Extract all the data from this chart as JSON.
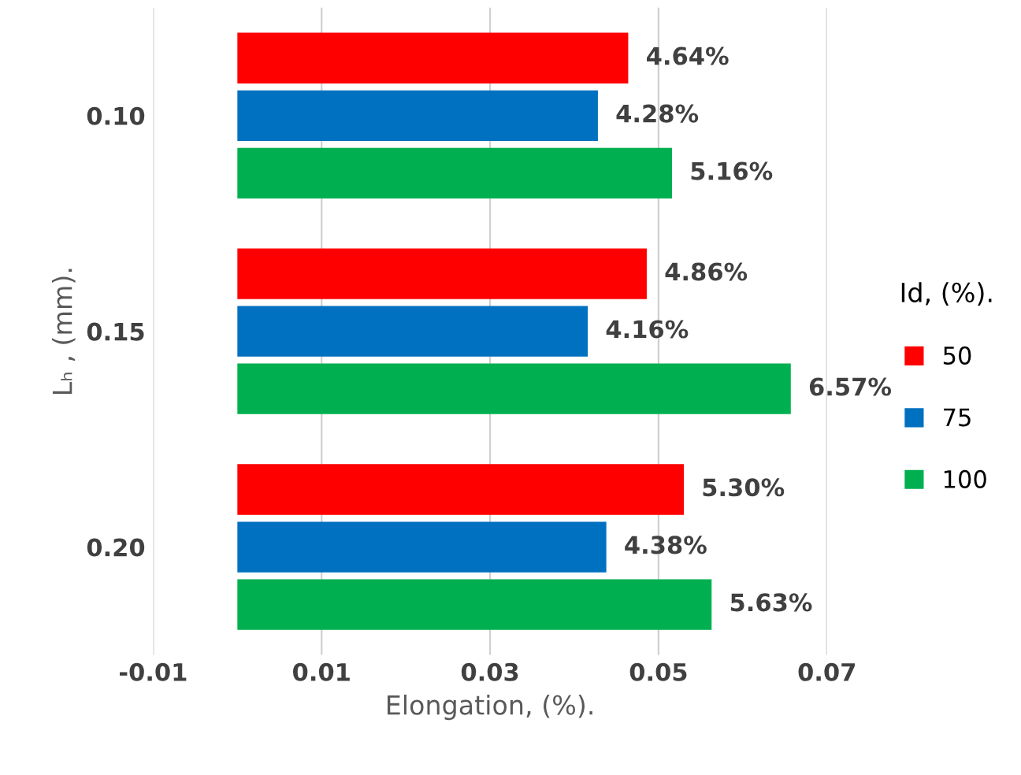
{
  "chart_data": {
    "type": "bar",
    "orientation": "horizontal",
    "xlabel": "Elongation, (%).",
    "ylabel": "Lₕ , (mm).",
    "legend_title": "Id, (%).",
    "legend": "right",
    "grid": "x",
    "categories": [
      "0.10",
      "0.15",
      "0.20"
    ],
    "xlim": [
      -0.01,
      0.07
    ],
    "xticks": [
      -0.01,
      0.01,
      0.03,
      0.05,
      0.07
    ],
    "series": [
      {
        "name": "50",
        "color": "#ff0000",
        "values": [
          0.0464,
          0.0486,
          0.053
        ],
        "value_labels": [
          "4.64%",
          "4.86%",
          "5.30%"
        ]
      },
      {
        "name": "75",
        "color": "#0070c0",
        "values": [
          0.0428,
          0.0416,
          0.0438
        ],
        "value_labels": [
          "4.28%",
          "4.16%",
          "4.38%"
        ]
      },
      {
        "name": "100",
        "color": "#00b050",
        "values": [
          0.0516,
          0.0657,
          0.0563
        ],
        "value_labels": [
          "5.16%",
          "6.57%",
          "5.63%"
        ]
      }
    ]
  }
}
